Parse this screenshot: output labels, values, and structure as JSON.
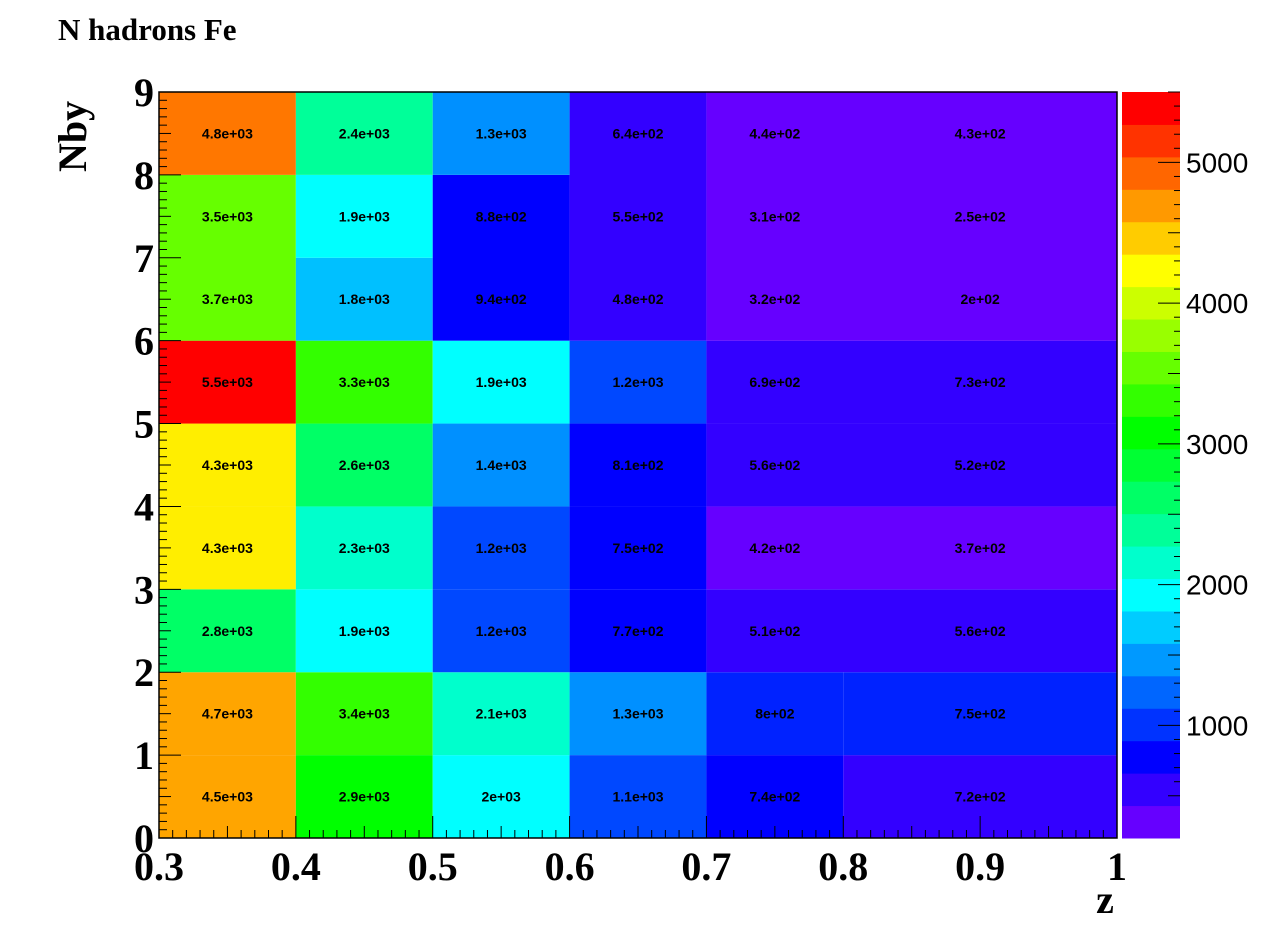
{
  "chart_data": {
    "type": "heatmap",
    "title": "N hadrons Fe",
    "xlabel": "z",
    "ylabel": "Nby",
    "xlim": [
      0.3,
      1.0
    ],
    "ylim": [
      0,
      9
    ],
    "x_ticks": [
      "0.3",
      "0.4",
      "0.5",
      "0.6",
      "0.7",
      "0.8",
      "0.9",
      "1"
    ],
    "y_ticks": [
      "0",
      "1",
      "2",
      "3",
      "4",
      "5",
      "6",
      "7",
      "8",
      "9"
    ],
    "colorbar": {
      "range": [
        200,
        5500
      ],
      "ticks": [
        "1000",
        "2000",
        "3000",
        "4000",
        "5000"
      ],
      "palette": [
        "#6600ff",
        "#3300ff",
        "#0000ff",
        "#0033ff",
        "#0066ff",
        "#0099ff",
        "#00ccff",
        "#00ffff",
        "#00ffcc",
        "#00ff99",
        "#00ff66",
        "#00ff33",
        "#00ff00",
        "#33ff00",
        "#66ff00",
        "#99ff00",
        "#ccff00",
        "#ffff00",
        "#ffcc00",
        "#ff9900",
        "#ff6600",
        "#ff3300",
        "#ff0000"
      ]
    },
    "cells": [
      {
        "x0": 0.3,
        "x1": 0.4,
        "y0": 0,
        "y1": 1,
        "value": 4500,
        "label": "4.5e+03"
      },
      {
        "x0": 0.4,
        "x1": 0.5,
        "y0": 0,
        "y1": 1,
        "value": 2900,
        "label": "2.9e+03"
      },
      {
        "x0": 0.5,
        "x1": 0.6,
        "y0": 0,
        "y1": 1,
        "value": 2000,
        "label": "2e+03"
      },
      {
        "x0": 0.6,
        "x1": 0.7,
        "y0": 0,
        "y1": 1,
        "value": 1100,
        "label": "1.1e+03"
      },
      {
        "x0": 0.7,
        "x1": 0.8,
        "y0": 0,
        "y1": 1,
        "value": 740,
        "label": "7.4e+02"
      },
      {
        "x0": 0.8,
        "x1": 1.0,
        "y0": 0,
        "y1": 1,
        "value": 720,
        "label": "7.2e+02"
      },
      {
        "x0": 0.3,
        "x1": 0.4,
        "y0": 1,
        "y1": 2,
        "value": 4700,
        "label": "4.7e+03"
      },
      {
        "x0": 0.4,
        "x1": 0.5,
        "y0": 1,
        "y1": 2,
        "value": 3400,
        "label": "3.4e+03"
      },
      {
        "x0": 0.5,
        "x1": 0.6,
        "y0": 1,
        "y1": 2,
        "value": 2100,
        "label": "2.1e+03"
      },
      {
        "x0": 0.6,
        "x1": 0.7,
        "y0": 1,
        "y1": 2,
        "value": 1300,
        "label": "1.3e+03"
      },
      {
        "x0": 0.7,
        "x1": 0.8,
        "y0": 1,
        "y1": 2,
        "value": 800,
        "label": "8e+02"
      },
      {
        "x0": 0.8,
        "x1": 1.0,
        "y0": 1,
        "y1": 2,
        "value": 750,
        "label": "7.5e+02"
      },
      {
        "x0": 0.3,
        "x1": 0.4,
        "y0": 2,
        "y1": 3,
        "value": 2800,
        "label": "2.8e+03"
      },
      {
        "x0": 0.4,
        "x1": 0.5,
        "y0": 2,
        "y1": 3,
        "value": 1900,
        "label": "1.9e+03"
      },
      {
        "x0": 0.5,
        "x1": 0.6,
        "y0": 2,
        "y1": 3,
        "value": 1200,
        "label": "1.2e+03"
      },
      {
        "x0": 0.6,
        "x1": 0.7,
        "y0": 2,
        "y1": 3,
        "value": 770,
        "label": "7.7e+02"
      },
      {
        "x0": 0.7,
        "x1": 1.0,
        "y0": 2,
        "y1": 3,
        "value": 510,
        "label": "5.1e+02",
        "label_x": 0.75
      },
      {
        "x0": 0.7,
        "x1": 1.0,
        "y0": 2,
        "y1": 3,
        "value": 560,
        "label": "5.6e+02",
        "label_x": 0.9,
        "no_fill": true
      },
      {
        "x0": 0.3,
        "x1": 0.4,
        "y0": 3,
        "y1": 4,
        "value": 4300,
        "label": "4.3e+03"
      },
      {
        "x0": 0.4,
        "x1": 0.5,
        "y0": 3,
        "y1": 4,
        "value": 2300,
        "label": "2.3e+03"
      },
      {
        "x0": 0.5,
        "x1": 0.6,
        "y0": 3,
        "y1": 4,
        "value": 1200,
        "label": "1.2e+03"
      },
      {
        "x0": 0.6,
        "x1": 0.7,
        "y0": 3,
        "y1": 4,
        "value": 750,
        "label": "7.5e+02"
      },
      {
        "x0": 0.7,
        "x1": 1.0,
        "y0": 3,
        "y1": 4,
        "value": 420,
        "label": "4.2e+02",
        "label_x": 0.75
      },
      {
        "x0": 0.7,
        "x1": 1.0,
        "y0": 3,
        "y1": 4,
        "value": 370,
        "label": "3.7e+02",
        "label_x": 0.9,
        "no_fill": true
      },
      {
        "x0": 0.3,
        "x1": 0.4,
        "y0": 4,
        "y1": 5,
        "value": 4300,
        "label": "4.3e+03"
      },
      {
        "x0": 0.4,
        "x1": 0.5,
        "y0": 4,
        "y1": 5,
        "value": 2600,
        "label": "2.6e+03"
      },
      {
        "x0": 0.5,
        "x1": 0.6,
        "y0": 4,
        "y1": 5,
        "value": 1400,
        "label": "1.4e+03"
      },
      {
        "x0": 0.6,
        "x1": 0.7,
        "y0": 4,
        "y1": 5,
        "value": 810,
        "label": "8.1e+02"
      },
      {
        "x0": 0.7,
        "x1": 1.0,
        "y0": 4,
        "y1": 5,
        "value": 560,
        "label": "5.6e+02",
        "label_x": 0.75
      },
      {
        "x0": 0.7,
        "x1": 1.0,
        "y0": 4,
        "y1": 5,
        "value": 520,
        "label": "5.2e+02",
        "label_x": 0.9,
        "no_fill": true
      },
      {
        "x0": 0.3,
        "x1": 0.4,
        "y0": 5,
        "y1": 6,
        "value": 5500,
        "label": "5.5e+03"
      },
      {
        "x0": 0.4,
        "x1": 0.5,
        "y0": 5,
        "y1": 6,
        "value": 3300,
        "label": "3.3e+03"
      },
      {
        "x0": 0.5,
        "x1": 0.6,
        "y0": 5,
        "y1": 6,
        "value": 1900,
        "label": "1.9e+03"
      },
      {
        "x0": 0.6,
        "x1": 0.7,
        "y0": 5,
        "y1": 6,
        "value": 1200,
        "label": "1.2e+03"
      },
      {
        "x0": 0.7,
        "x1": 1.0,
        "y0": 5,
        "y1": 6,
        "value": 690,
        "label": "6.9e+02",
        "label_x": 0.75
      },
      {
        "x0": 0.7,
        "x1": 1.0,
        "y0": 5,
        "y1": 6,
        "value": 730,
        "label": "7.3e+02",
        "label_x": 0.9,
        "no_fill": true
      },
      {
        "x0": 0.3,
        "x1": 0.4,
        "y0": 6,
        "y1": 8,
        "value": 3700,
        "label": "3.7e+03",
        "label_y": 6.5
      },
      {
        "x0": 0.3,
        "x1": 0.4,
        "y0": 6,
        "y1": 8,
        "value": 3500,
        "label": "3.5e+03",
        "label_y": 7.5,
        "no_fill": true
      },
      {
        "x0": 0.4,
        "x1": 0.5,
        "y0": 6,
        "y1": 7,
        "value": 1800,
        "label": "1.8e+03"
      },
      {
        "x0": 0.4,
        "x1": 0.5,
        "y0": 7,
        "y1": 8,
        "value": 1900,
        "label": "1.9e+03"
      },
      {
        "x0": 0.5,
        "x1": 0.6,
        "y0": 6,
        "y1": 8,
        "value": 940,
        "label": "9.4e+02",
        "label_y": 6.5
      },
      {
        "x0": 0.5,
        "x1": 0.6,
        "y0": 6,
        "y1": 8,
        "value": 880,
        "label": "8.8e+02",
        "label_y": 7.5,
        "no_fill": true
      },
      {
        "x0": 0.6,
        "x1": 0.7,
        "y0": 6,
        "y1": 9,
        "value": 480,
        "label": "4.8e+02",
        "label_y": 6.5
      },
      {
        "x0": 0.6,
        "x1": 0.7,
        "y0": 6,
        "y1": 9,
        "value": 550,
        "label": "5.5e+02",
        "label_y": 7.5,
        "no_fill": true
      },
      {
        "x0": 0.6,
        "x1": 0.7,
        "y0": 6,
        "y1": 9,
        "value": 640,
        "label": "6.4e+02",
        "label_y": 8.5,
        "no_fill": true
      },
      {
        "x0": 0.7,
        "x1": 1.0,
        "y0": 6,
        "y1": 9,
        "value": 320,
        "label": "3.2e+02",
        "label_x": 0.75,
        "label_y": 6.5
      },
      {
        "x0": 0.7,
        "x1": 1.0,
        "y0": 6,
        "y1": 9,
        "value": 200,
        "label": "2e+02",
        "label_x": 0.9,
        "label_y": 6.5,
        "no_fill": true
      },
      {
        "x0": 0.7,
        "x1": 1.0,
        "y0": 6,
        "y1": 9,
        "value": 310,
        "label": "3.1e+02",
        "label_x": 0.75,
        "label_y": 7.5,
        "no_fill": true
      },
      {
        "x0": 0.7,
        "x1": 1.0,
        "y0": 6,
        "y1": 9,
        "value": 250,
        "label": "2.5e+02",
        "label_x": 0.9,
        "label_y": 7.5,
        "no_fill": true
      },
      {
        "x0": 0.7,
        "x1": 1.0,
        "y0": 6,
        "y1": 9,
        "value": 440,
        "label": "4.4e+02",
        "label_x": 0.75,
        "label_y": 8.5,
        "no_fill": true
      },
      {
        "x0": 0.7,
        "x1": 1.0,
        "y0": 6,
        "y1": 9,
        "value": 430,
        "label": "4.3e+02",
        "label_x": 0.9,
        "label_y": 8.5,
        "no_fill": true
      },
      {
        "x0": 0.3,
        "x1": 0.4,
        "y0": 8,
        "y1": 9,
        "value": 4800,
        "label": "4.8e+03"
      },
      {
        "x0": 0.4,
        "x1": 0.5,
        "y0": 8,
        "y1": 9,
        "value": 2400,
        "label": "2.4e+03"
      },
      {
        "x0": 0.5,
        "x1": 0.6,
        "y0": 8,
        "y1": 9,
        "value": 1300,
        "label": "1.3e+03"
      }
    ],
    "fill_colors": {
      "0.3-0.4|0-1": "#ffa500",
      "0.4-0.5|0-1": "#00ff00",
      "0.5-0.6|0-1": "#00ffff",
      "0.6-0.7|0-1": "#0048ff",
      "0.7-0.8|0-1": "#0000ff",
      "0.8-1|0-1": "#3300ff",
      "0.3-0.4|1-2": "#ffa500",
      "0.4-0.5|1-2": "#33ff00",
      "0.5-0.6|1-2": "#00ffcc",
      "0.6-0.7|1-2": "#0090ff",
      "0.7-0.8|1-2": "#0022ff",
      "0.8-1|1-2": "#0022ff",
      "0.3-0.4|2-3": "#00ff66",
      "0.4-0.5|2-3": "#00ffff",
      "0.5-0.6|2-3": "#0048ff",
      "0.6-0.7|2-3": "#0000ff",
      "0.7-1|2-3": "#3300ff",
      "0.3-0.4|3-4": "#ffee00",
      "0.4-0.5|3-4": "#00ffcc",
      "0.5-0.6|3-4": "#0048ff",
      "0.6-0.7|3-4": "#0000ff",
      "0.7-1|3-4": "#6600ff",
      "0.3-0.4|4-5": "#ffee00",
      "0.4-0.5|4-5": "#00ff66",
      "0.5-0.6|4-5": "#0090ff",
      "0.6-0.7|4-5": "#0000ff",
      "0.7-1|4-5": "#3300ff",
      "0.3-0.4|5-6": "#ff0000",
      "0.4-0.5|5-6": "#33ff00",
      "0.5-0.6|5-6": "#00ffff",
      "0.6-0.7|5-6": "#0048ff",
      "0.7-1|5-6": "#3300ff",
      "0.3-0.4|6-8": "#66ff00",
      "0.4-0.5|6-7": "#00c0ff",
      "0.4-0.5|7-8": "#00ffff",
      "0.5-0.6|6-8": "#0000ff",
      "0.6-0.7|6-9": "#3300ff",
      "0.7-1|6-9": "#6600ff",
      "0.3-0.4|8-9": "#ff7700",
      "0.4-0.5|8-9": "#00ff99",
      "0.5-0.6|8-9": "#0090ff"
    }
  }
}
